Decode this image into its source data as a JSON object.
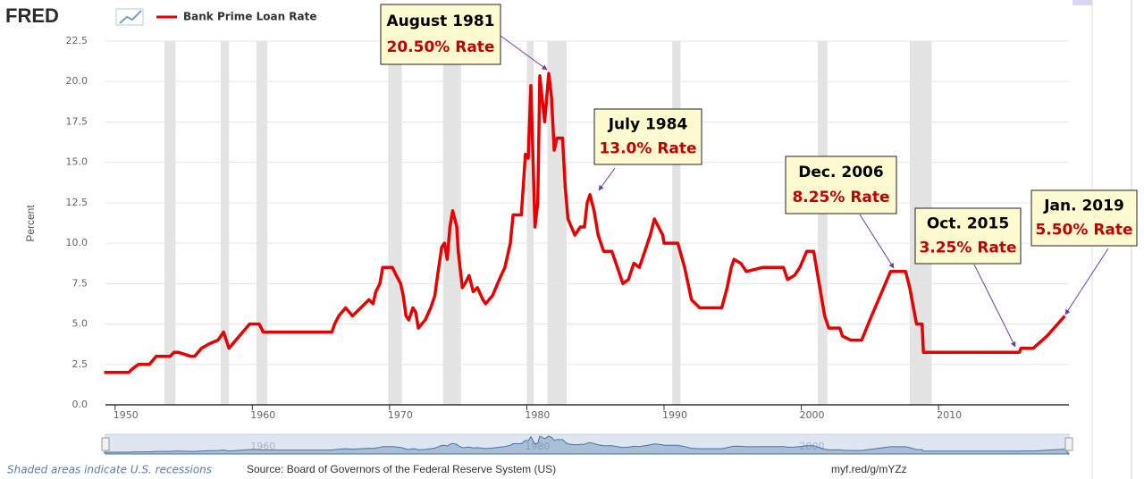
{
  "brand": "FRED",
  "chart_data": {
    "type": "line",
    "y_label": "Percent",
    "x": [
      1949.2,
      1951.0,
      1951.3,
      1951.7,
      1952.5,
      1953.0,
      1954.0,
      1954.3,
      1954.6,
      1955.5,
      1955.8,
      1956.3,
      1956.8,
      1957.5,
      1957.9,
      1958.3,
      1958.8,
      1959.3,
      1959.8,
      1960.5,
      1960.8,
      1965.8,
      1966.0,
      1966.3,
      1966.8,
      1967.3,
      1967.9,
      1968.5,
      1968.8,
      1969.0,
      1969.3,
      1969.5,
      1970.2,
      1970.5,
      1970.8,
      1971.0,
      1971.2,
      1971.4,
      1971.7,
      1971.9,
      1972.1,
      1972.6,
      1973.0,
      1973.3,
      1973.5,
      1973.8,
      1974.0,
      1974.2,
      1974.4,
      1974.6,
      1974.9,
      1975.0,
      1975.3,
      1975.5,
      1975.8,
      1976.1,
      1976.4,
      1976.8,
      1977.0,
      1977.5,
      1978.0,
      1978.4,
      1978.8,
      1979.0,
      1979.6,
      1979.9,
      1980.1,
      1980.3,
      1980.6,
      1980.8,
      1980.95,
      1981.3,
      1981.6,
      1981.8,
      1982.0,
      1982.2,
      1982.6,
      1982.8,
      1983.0,
      1983.5,
      1983.9,
      1984.2,
      1984.4,
      1984.6,
      1984.9,
      1985.2,
      1985.6,
      1986.2,
      1986.6,
      1987.0,
      1987.4,
      1987.8,
      1988.2,
      1988.6,
      1989.0,
      1989.3,
      1989.9,
      1990.0,
      1991.0,
      1991.5,
      1992.0,
      1992.6,
      1994.2,
      1994.6,
      1994.9,
      1995.1,
      1995.6,
      1996.0,
      1997.2,
      1998.7,
      1999.0,
      1999.5,
      1999.9,
      2000.4,
      2000.9,
      2001.2,
      2001.7,
      2002.0,
      2002.8,
      2003.0,
      2003.6,
      2004.4,
      2005.0,
      2006.0,
      2006.5,
      2007.6,
      2007.9,
      2008.4,
      2008.8,
      2008.9,
      2015.9,
      2016.0,
      2016.9,
      2017.9,
      2019.2
    ],
    "series": [
      {
        "name": "Bank Prime Loan Rate",
        "color": "#e60000",
        "values": [
          2.0,
          2.0,
          2.25,
          2.5,
          2.5,
          3.0,
          3.0,
          3.25,
          3.25,
          3.0,
          3.0,
          3.5,
          3.75,
          4.0,
          4.5,
          3.5,
          4.0,
          4.5,
          5.0,
          5.0,
          4.5,
          4.5,
          5.0,
          5.5,
          6.0,
          5.5,
          6.0,
          6.5,
          6.25,
          7.0,
          7.5,
          8.5,
          8.5,
          8.0,
          7.5,
          6.75,
          5.5,
          5.25,
          6.0,
          5.75,
          4.75,
          5.25,
          6.0,
          6.75,
          8.0,
          9.75,
          10.0,
          9.0,
          11.0,
          12.0,
          11.0,
          9.5,
          7.25,
          7.5,
          8.0,
          7.0,
          7.25,
          6.5,
          6.25,
          6.75,
          7.75,
          8.5,
          10.0,
          11.75,
          11.75,
          15.5,
          15.25,
          19.75,
          11.0,
          12.5,
          20.35,
          17.5,
          20.5,
          19.0,
          15.75,
          16.5,
          16.5,
          13.5,
          11.5,
          10.5,
          11.0,
          11.0,
          12.5,
          13.0,
          12.0,
          10.5,
          9.5,
          9.5,
          8.5,
          7.5,
          7.75,
          8.75,
          8.5,
          9.5,
          10.5,
          11.5,
          10.5,
          10.0,
          10.0,
          8.5,
          6.5,
          6.0,
          6.0,
          7.25,
          8.5,
          9.0,
          8.75,
          8.25,
          8.5,
          8.5,
          7.75,
          8.0,
          8.5,
          9.5,
          9.5,
          8.0,
          5.5,
          4.75,
          4.75,
          4.25,
          4.0,
          4.0,
          5.25,
          7.25,
          8.25,
          8.25,
          7.25,
          5.0,
          5.0,
          3.25,
          3.25,
          3.5,
          3.5,
          4.25,
          5.5
        ]
      }
    ],
    "xlim": [
      1949.3,
      2019.5
    ],
    "xticks": [
      1950,
      1960,
      1970,
      1980,
      1990,
      2000,
      2010
    ],
    "ylim": [
      0,
      22.5
    ],
    "yticks": [
      {
        "value": 0,
        "label": "0.0"
      },
      2.5,
      {
        "value": 5,
        "label": "5.0"
      },
      7.5,
      {
        "value": 10,
        "label": "10.0"
      },
      12.5,
      {
        "value": 15,
        "label": "15.0"
      },
      17.5,
      {
        "value": 20,
        "label": "20.0"
      },
      22.5
    ],
    "grid": true,
    "recessions": [
      [
        1953.6,
        1954.4
      ],
      [
        1957.7,
        1958.3
      ],
      [
        1960.3,
        1961.1
      ],
      [
        1969.9,
        1970.9
      ],
      [
        1973.9,
        1975.2
      ],
      [
        1980.0,
        1980.5
      ],
      [
        1981.5,
        1982.9
      ],
      [
        1990.6,
        1991.2
      ],
      [
        2001.2,
        2001.9
      ],
      [
        2007.9,
        2009.5
      ]
    ],
    "navigator_labels": [
      1960,
      1980,
      2000
    ],
    "annotations": [
      {
        "title": "August 1981",
        "text": "20.50% Rate"
      },
      {
        "title": "July 1984",
        "text": "13.0% Rate"
      },
      {
        "title": "Dec. 2006",
        "text": "8.25% Rate"
      },
      {
        "title": "Oct. 2015",
        "text": "3.25% Rate"
      },
      {
        "title": "Jan. 2019",
        "text": "5.50% Rate"
      }
    ]
  },
  "footer": {
    "note": "Shaded areas indicate U.S. recessions",
    "source": "Source: Board of Governors of the Federal Reserve System (US)",
    "link": "myf.red/g/mYZz"
  }
}
